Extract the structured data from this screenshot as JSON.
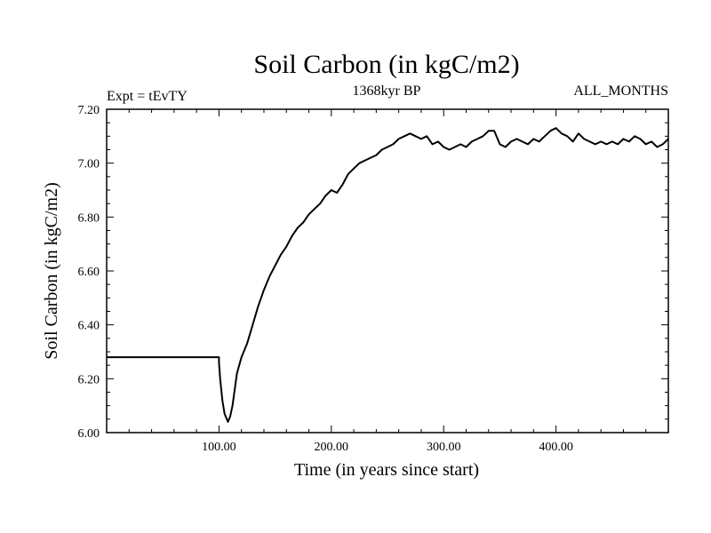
{
  "chart_data": {
    "type": "line",
    "title": "Soil Carbon (in kgC/m2)",
    "subtitle": "1368kyr BP",
    "left_label": "Expt = tEvTY",
    "right_label": "ALL_MONTHS",
    "xlabel": "Time (in years since start)",
    "ylabel": "Soil Carbon (in kgC/m2)",
    "xlim": [
      0,
      500
    ],
    "ylim": [
      6.0,
      7.2
    ],
    "x_ticks": [
      100,
      200,
      300,
      400
    ],
    "x_tick_labels": [
      "100.00",
      "200.00",
      "300.00",
      "400.00"
    ],
    "y_ticks": [
      6.0,
      6.2,
      6.4,
      6.6,
      6.8,
      7.0,
      7.2
    ],
    "y_tick_labels": [
      "6.00",
      "6.20",
      "6.40",
      "6.60",
      "6.80",
      "7.00",
      "7.20"
    ],
    "grid": false,
    "series": [
      {
        "name": "Soil Carbon",
        "color": "#000000",
        "x": [
          0,
          100,
          100,
          101,
          103,
          105,
          107,
          108,
          110,
          112,
          114,
          116,
          120,
          125,
          130,
          135,
          140,
          145,
          150,
          155,
          160,
          165,
          170,
          175,
          180,
          185,
          190,
          195,
          200,
          205,
          210,
          215,
          220,
          225,
          230,
          235,
          240,
          245,
          250,
          255,
          260,
          265,
          270,
          275,
          280,
          285,
          290,
          295,
          300,
          305,
          310,
          315,
          320,
          325,
          330,
          335,
          340,
          345,
          350,
          355,
          360,
          365,
          370,
          375,
          380,
          385,
          390,
          395,
          400,
          405,
          410,
          415,
          420,
          425,
          430,
          435,
          440,
          445,
          450,
          455,
          460,
          465,
          470,
          475,
          480,
          485,
          490,
          495,
          500
        ],
        "y": [
          6.28,
          6.28,
          6.26,
          6.2,
          6.12,
          6.07,
          6.05,
          6.04,
          6.06,
          6.1,
          6.16,
          6.22,
          6.28,
          6.33,
          6.4,
          6.47,
          6.53,
          6.58,
          6.62,
          6.66,
          6.69,
          6.73,
          6.76,
          6.78,
          6.81,
          6.83,
          6.85,
          6.88,
          6.9,
          6.89,
          6.92,
          6.96,
          6.98,
          7.0,
          7.01,
          7.02,
          7.03,
          7.05,
          7.06,
          7.07,
          7.09,
          7.1,
          7.11,
          7.1,
          7.09,
          7.1,
          7.07,
          7.08,
          7.06,
          7.05,
          7.06,
          7.07,
          7.06,
          7.08,
          7.09,
          7.1,
          7.12,
          7.12,
          7.07,
          7.06,
          7.08,
          7.09,
          7.08,
          7.07,
          7.09,
          7.08,
          7.1,
          7.12,
          7.13,
          7.11,
          7.1,
          7.08,
          7.11,
          7.09,
          7.08,
          7.07,
          7.08,
          7.07,
          7.08,
          7.07,
          7.09,
          7.08,
          7.1,
          7.09,
          7.07,
          7.08,
          7.06,
          7.07,
          7.09
        ]
      }
    ]
  }
}
